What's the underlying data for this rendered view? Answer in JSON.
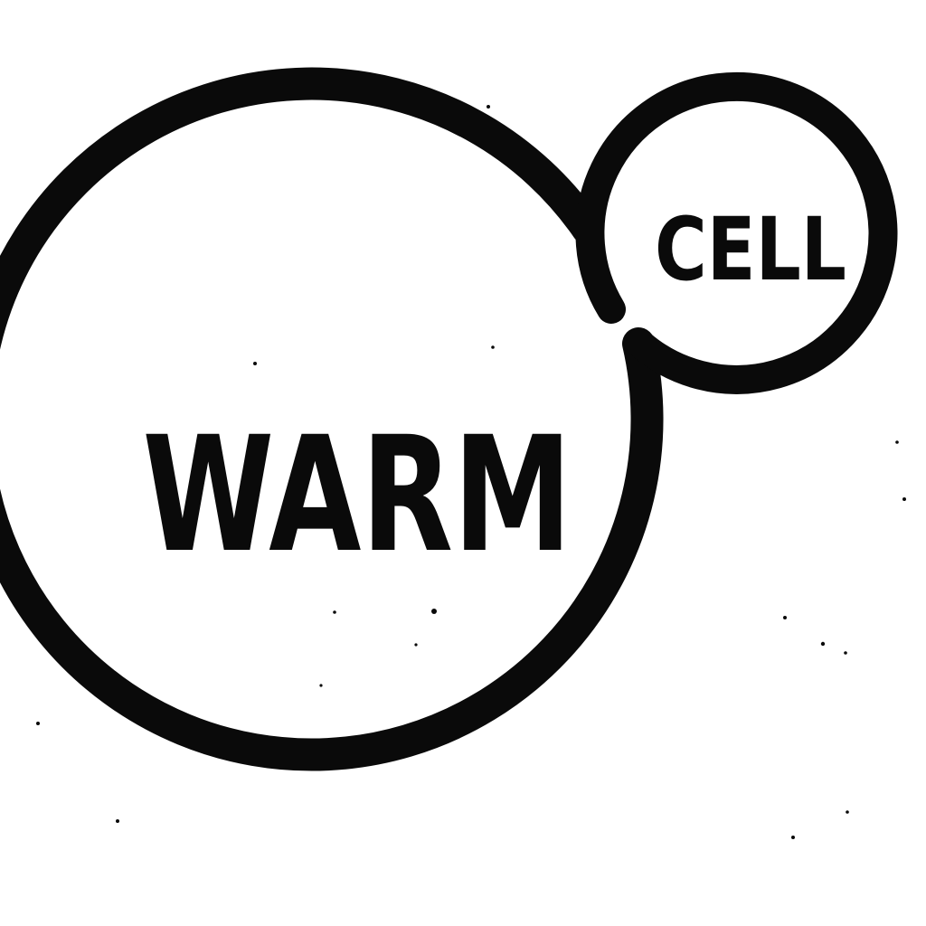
{
  "logo": {
    "main_word": "WARM",
    "secondary_word": "CELL",
    "ink_color": "#0a0a0a",
    "background_color": "#ffffff"
  }
}
